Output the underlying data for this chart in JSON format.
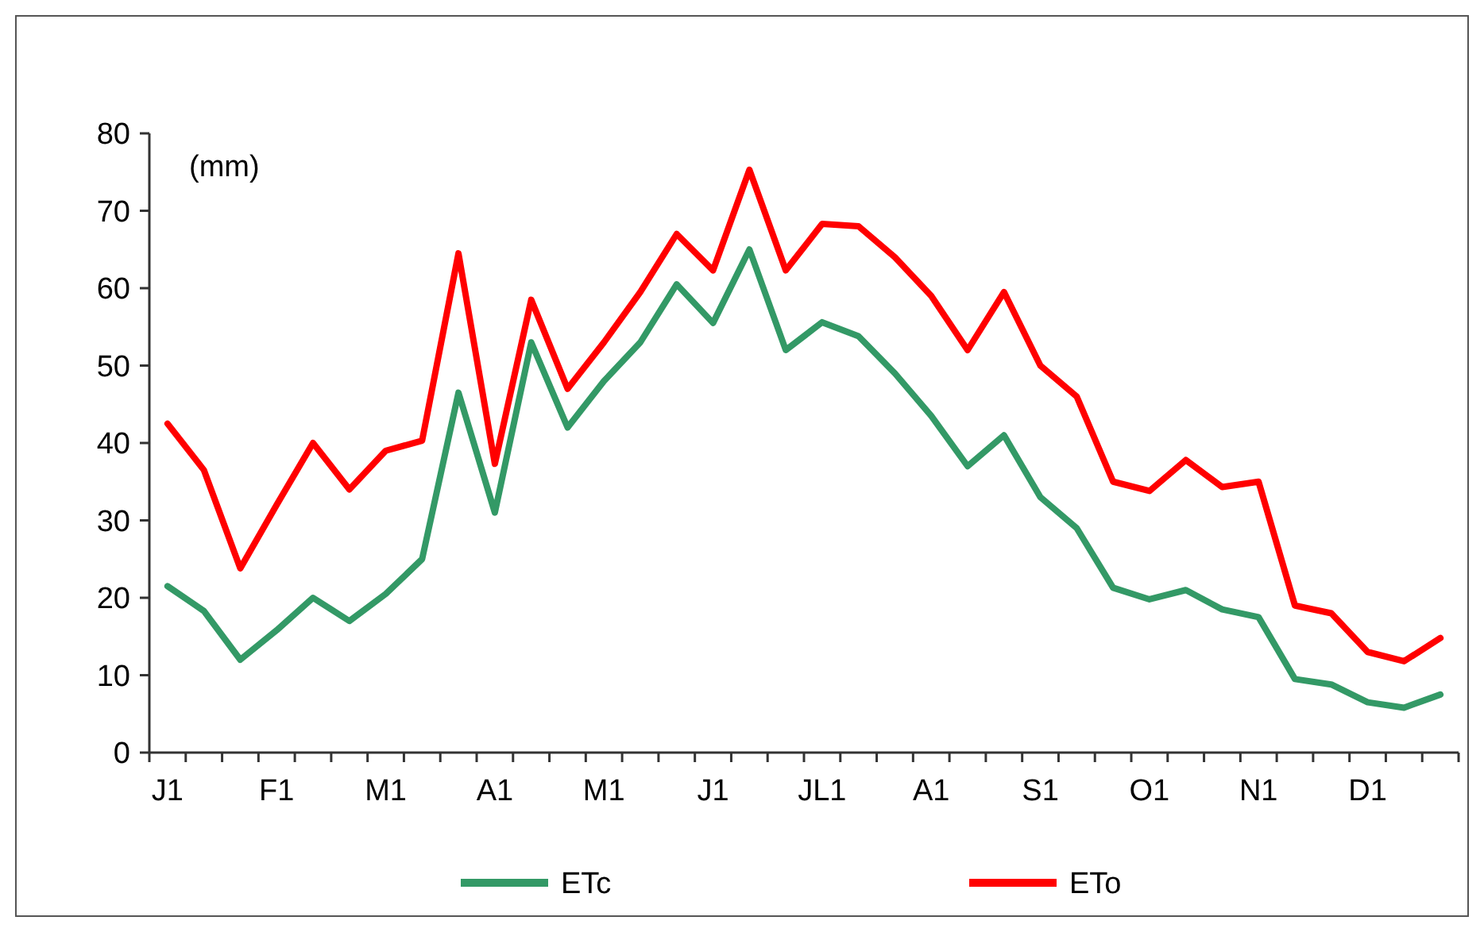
{
  "chart_data": {
    "type": "line",
    "categories": [
      "J1",
      null,
      null,
      "F1",
      null,
      null,
      "M1",
      null,
      null,
      "A1",
      null,
      null,
      "M1",
      null,
      null,
      "J1",
      null,
      null,
      "JL1",
      null,
      null,
      "A1",
      null,
      null,
      "S1",
      null,
      null,
      "O1",
      null,
      null,
      "N1",
      null,
      null,
      "D1",
      null,
      null
    ],
    "series": [
      {
        "name": "ETc",
        "color": "#339966",
        "values": [
          21.5,
          18.3,
          12,
          15.8,
          20,
          17,
          20.5,
          25,
          46.5,
          31,
          53,
          42,
          48,
          53,
          60.5,
          55.5,
          65,
          52,
          55.6,
          53.8,
          49,
          43.5,
          37,
          41,
          33,
          29,
          21.3,
          19.8,
          21,
          18.5,
          17.5,
          9.5,
          8.8,
          6.5,
          5.8,
          7.5
        ]
      },
      {
        "name": "ETo",
        "color": "#ff0000",
        "values": [
          42.5,
          36.5,
          23.8,
          32,
          40,
          34,
          39,
          40.3,
          64.5,
          37.3,
          58.5,
          47,
          53,
          59.5,
          67,
          62.3,
          75.3,
          62.3,
          68.3,
          68,
          64,
          59,
          52,
          59.5,
          50,
          46,
          35,
          33.8,
          37.8,
          34.3,
          35,
          19,
          18,
          13,
          11.8,
          14.8
        ]
      }
    ],
    "ylim": [
      0,
      80
    ],
    "yticks": [
      0,
      10,
      20,
      30,
      40,
      50,
      60,
      70,
      80
    ],
    "annotations": [
      "(mm)"
    ],
    "legend": "bottom",
    "grid": false,
    "marker": "none",
    "line_style": "solid"
  }
}
